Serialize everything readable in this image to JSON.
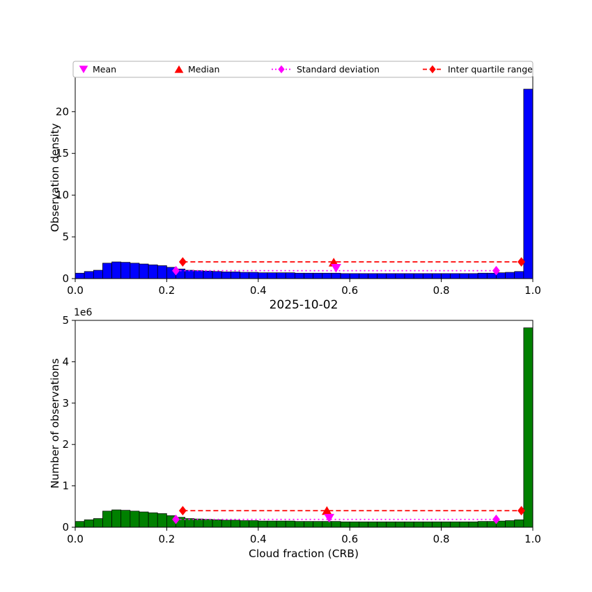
{
  "figure": {
    "title": "2025-10-02",
    "xlabel": "Cloud fraction (CRB)",
    "background": "#ffffff"
  },
  "legend": {
    "items": [
      {
        "label": "Mean",
        "marker": "triangle-down",
        "color": "#ff00ff",
        "linestyle": "none"
      },
      {
        "label": "Median",
        "marker": "triangle-up",
        "color": "#ff0000",
        "linestyle": "none"
      },
      {
        "label": "Standard deviation",
        "marker": "diamond",
        "color": "#ff00ff",
        "linestyle": "dotted"
      },
      {
        "label": "Inter quartile range",
        "marker": "diamond",
        "color": "#ff0000",
        "linestyle": "dashed"
      }
    ]
  },
  "chart_data": [
    {
      "type": "bar",
      "name": "observation-density-histogram",
      "ylabel": "Observation density",
      "bar_color": "#0000ff",
      "edge_color": "#000000",
      "bin_start": 0.0,
      "bin_width": 0.02,
      "values": [
        0.65,
        0.85,
        1.0,
        1.85,
        2.0,
        1.95,
        1.85,
        1.75,
        1.65,
        1.55,
        1.35,
        1.15,
        1.0,
        0.95,
        0.9,
        0.85,
        0.8,
        0.8,
        0.75,
        0.75,
        0.7,
        0.7,
        0.7,
        0.7,
        0.65,
        0.65,
        0.65,
        0.65,
        0.65,
        0.6,
        0.6,
        0.6,
        0.6,
        0.6,
        0.6,
        0.6,
        0.6,
        0.6,
        0.6,
        0.6,
        0.6,
        0.6,
        0.6,
        0.6,
        0.65,
        0.65,
        0.7,
        0.75,
        0.85,
        22.7
      ],
      "xlim": [
        0.0,
        1.0
      ],
      "ylim": [
        0,
        24.2
      ],
      "xticks": [
        "0.0",
        "0.2",
        "0.4",
        "0.6",
        "0.8",
        "1.0"
      ],
      "yticks": [
        0,
        5,
        10,
        15,
        20
      ],
      "stats": {
        "mean": {
          "x": 0.57,
          "y": 1.25
        },
        "median": {
          "x": 0.565,
          "y": 1.95
        },
        "std_range": {
          "x1": 0.22,
          "x2": 0.92,
          "y": 0.95
        },
        "iqr_range": {
          "x1": 0.235,
          "x2": 0.975,
          "y": 2.0
        }
      }
    },
    {
      "type": "bar",
      "name": "observation-count-histogram",
      "ylabel": "Number of observations",
      "offset_text": "1e6",
      "bar_color": "#008000",
      "edge_color": "#000000",
      "bin_start": 0.0,
      "bin_width": 0.02,
      "values": [
        0.14,
        0.18,
        0.21,
        0.39,
        0.42,
        0.41,
        0.39,
        0.37,
        0.35,
        0.33,
        0.28,
        0.24,
        0.21,
        0.2,
        0.19,
        0.18,
        0.17,
        0.17,
        0.16,
        0.16,
        0.15,
        0.15,
        0.15,
        0.15,
        0.14,
        0.14,
        0.14,
        0.14,
        0.14,
        0.13,
        0.13,
        0.13,
        0.13,
        0.13,
        0.13,
        0.13,
        0.13,
        0.13,
        0.13,
        0.13,
        0.13,
        0.13,
        0.13,
        0.13,
        0.14,
        0.14,
        0.15,
        0.16,
        0.18,
        4.82
      ],
      "xlim": [
        0.0,
        1.0
      ],
      "ylim": [
        0,
        5.0
      ],
      "xticks": [
        "0.0",
        "0.2",
        "0.4",
        "0.6",
        "0.8",
        "1.0"
      ],
      "yticks": [
        0,
        1,
        2,
        3,
        4,
        5
      ],
      "stats": {
        "mean": {
          "x": 0.555,
          "y": 0.22
        },
        "median": {
          "x": 0.55,
          "y": 0.4
        },
        "std_range": {
          "x1": 0.22,
          "x2": 0.92,
          "y": 0.19
        },
        "iqr_range": {
          "x1": 0.235,
          "x2": 0.975,
          "y": 0.4
        }
      }
    }
  ]
}
